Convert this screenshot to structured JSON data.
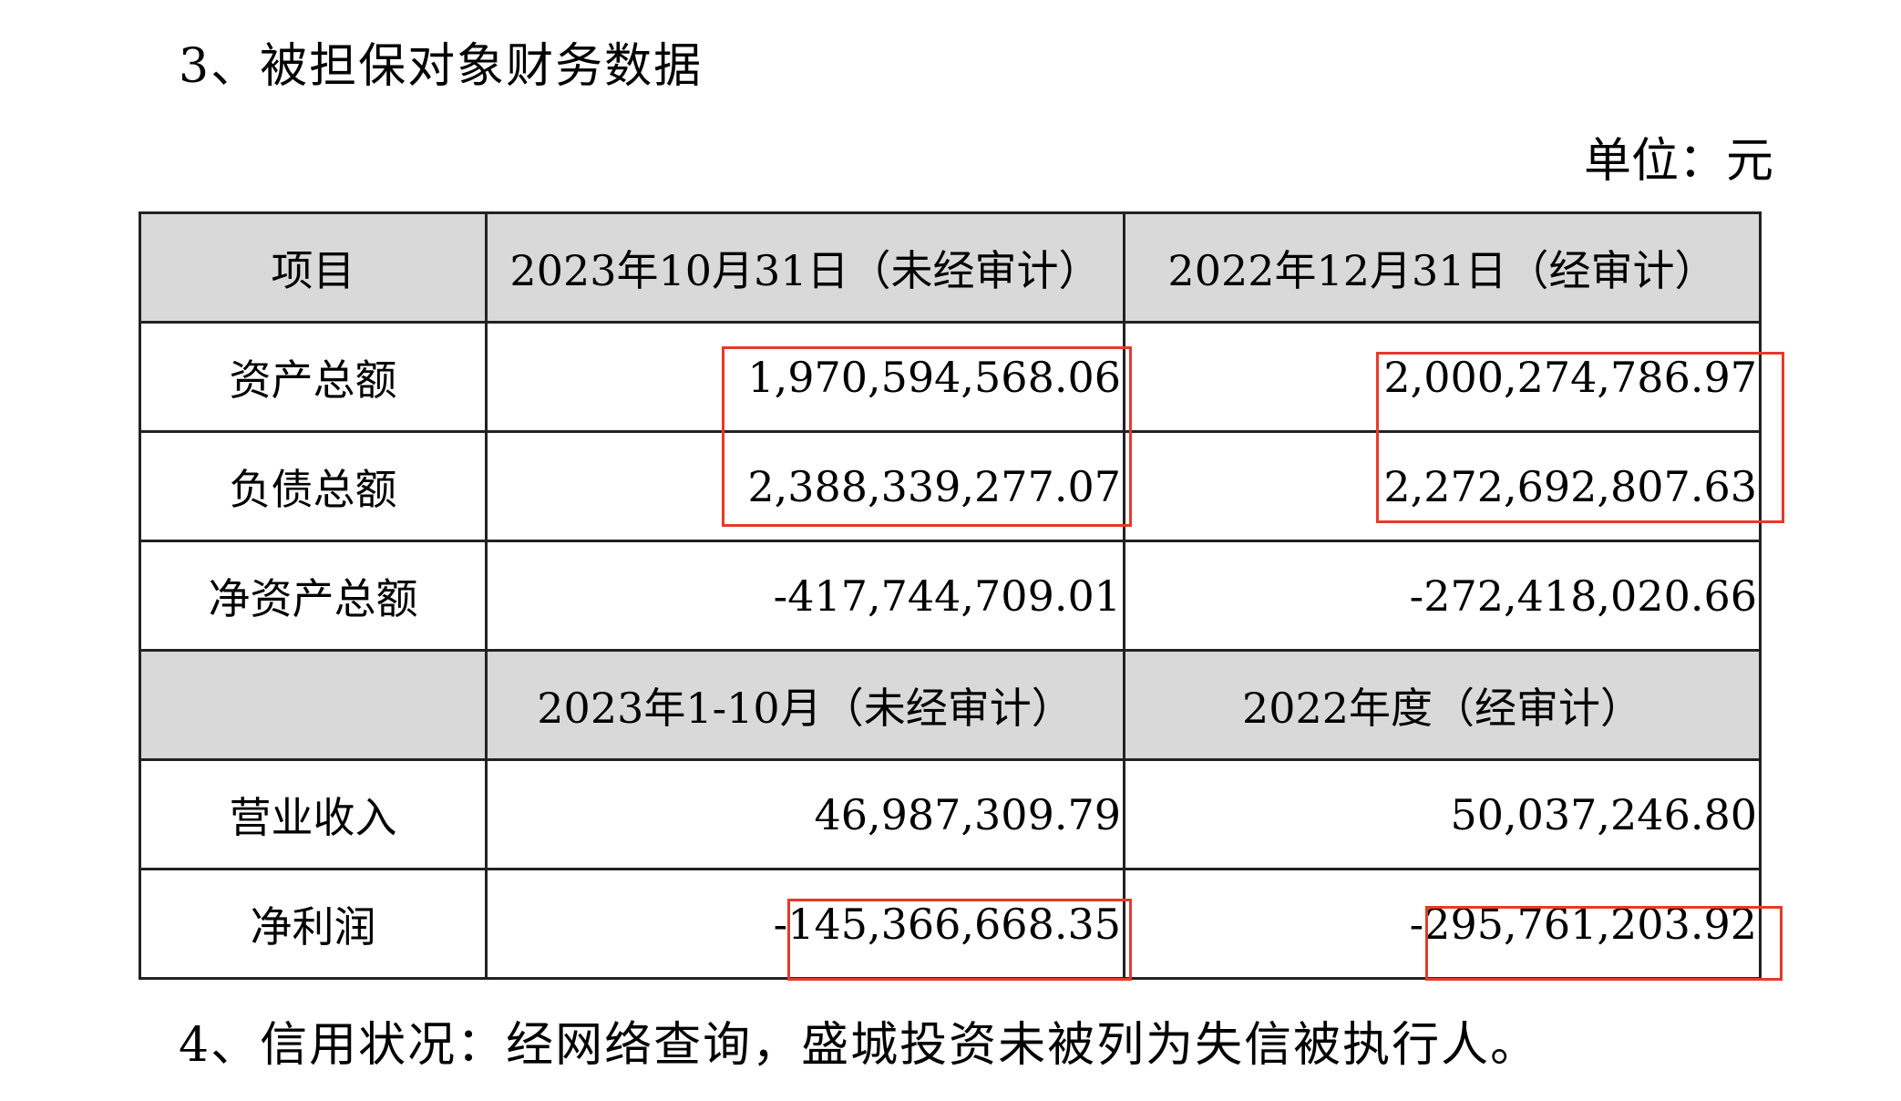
{
  "heading": "3、被担保对象财务数据",
  "unit": "单位：元",
  "table": {
    "header1": {
      "item": "项目",
      "col1": "2023年10月31日（未经审计）",
      "col2": "2022年12月31日（经审计）"
    },
    "rows_balance": [
      {
        "label": "资产总额",
        "v1": "1,970,594,568.06",
        "v2": "2,000,274,786.97"
      },
      {
        "label": "负债总额",
        "v1": "2,388,339,277.07",
        "v2": "2,272,692,807.63"
      },
      {
        "label": "净资产总额",
        "v1": "-417,744,709.01",
        "v2": "-272,418,020.66"
      }
    ],
    "header2": {
      "item": "",
      "col1": "2023年1-10月（未经审计）",
      "col2": "2022年度（经审计）"
    },
    "rows_income": [
      {
        "label": "营业收入",
        "v1": "46,987,309.79",
        "v2": "50,037,246.80"
      },
      {
        "label": "净利润",
        "v1": "-145,366,668.35",
        "v2": "-295,761,203.92"
      }
    ]
  },
  "highlight_color": "#e53a2a",
  "footer": "4、信用状况：经网络查询，盛城投资未被列为失信被执行人。"
}
